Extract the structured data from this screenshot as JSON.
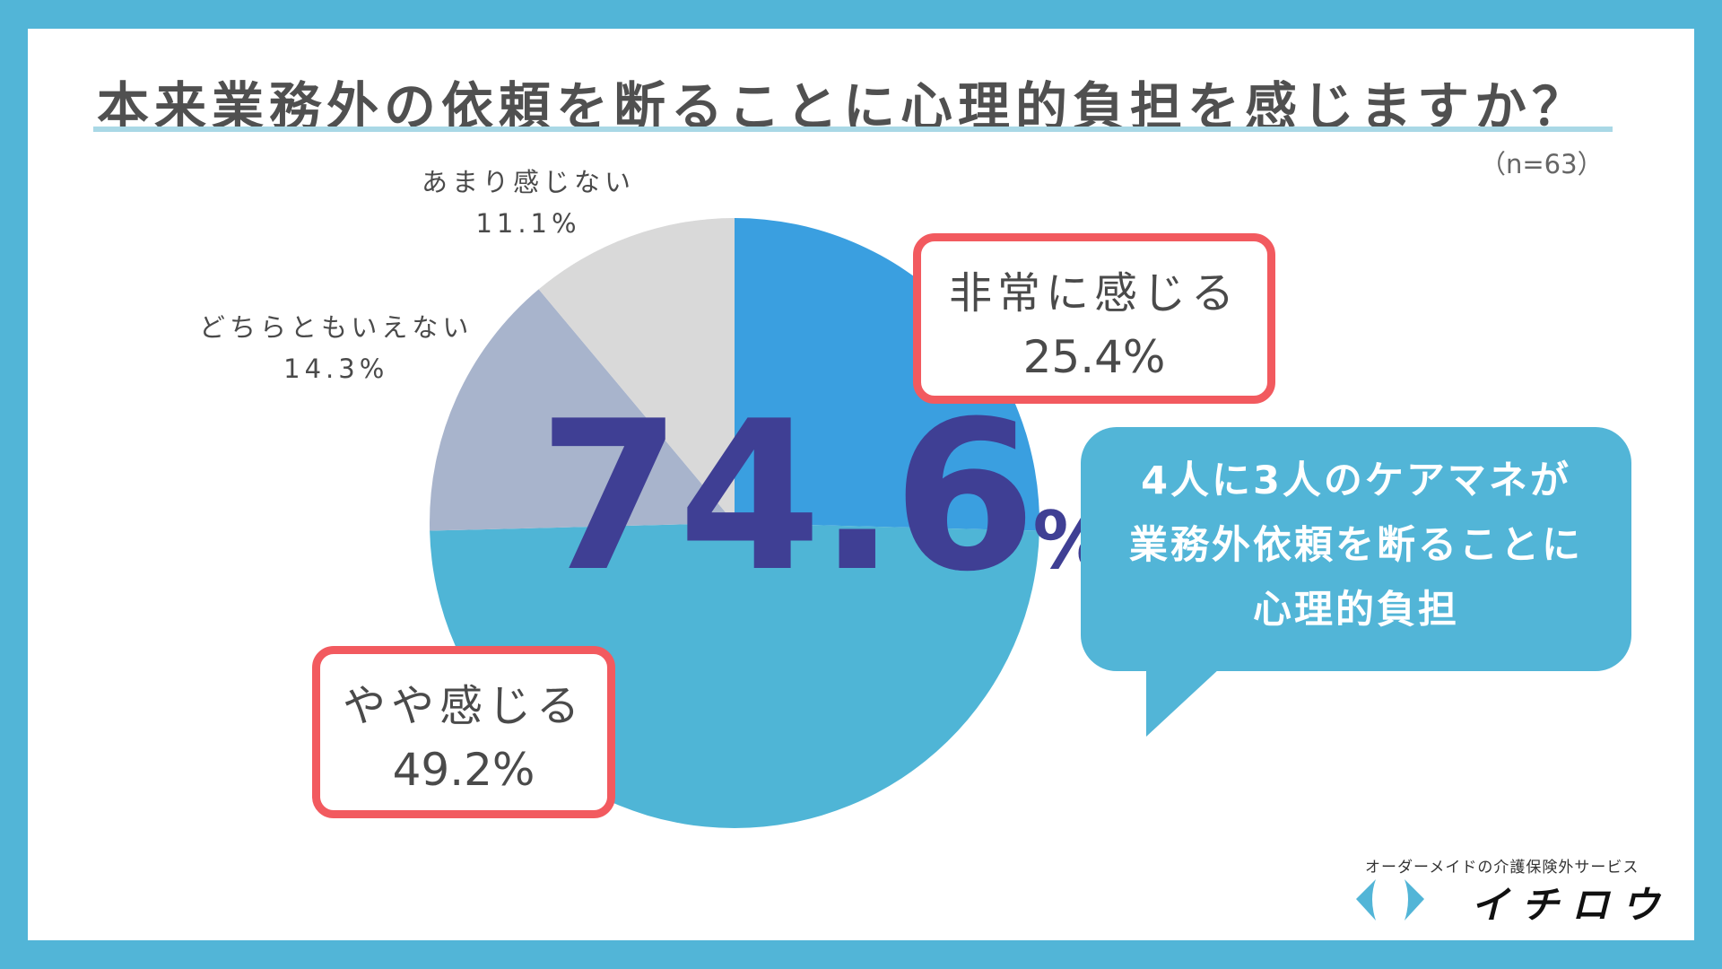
{
  "title": "本来業務外の依頼を断ることに心理的負担を感じますか？",
  "sample": "（n=63）",
  "headline": {
    "value": "74.6",
    "unit": "%"
  },
  "callout": {
    "lines": [
      "4人に3人のケアマネが",
      "業務外依頼を断ることに",
      "心理的負担"
    ]
  },
  "labels": {
    "very": {
      "name": "非常に感じる",
      "pct": "25.4%"
    },
    "somewhat": {
      "name": "やや感じる",
      "pct": "49.2%"
    },
    "neutral": {
      "name": "どちらともいえない",
      "pct": "14.3%"
    },
    "little": {
      "name": "あまり感じない",
      "pct": "11.1%"
    }
  },
  "logo": {
    "tagline": "オーダーメイドの介護保険外サービス",
    "name": "イチロウ",
    "mark_color": "#52b5d7"
  },
  "colors": {
    "frame": "#52b5d7",
    "highlight_border": "#f25a5f",
    "headline": "#3f3f94"
  },
  "chart_data": {
    "type": "pie",
    "title": "本来業務外の依頼を断ることに心理的負担を感じますか？",
    "n": 63,
    "categories": [
      "非常に感じる",
      "やや感じる",
      "どちらともいえない",
      "あまり感じない"
    ],
    "values": [
      25.4,
      49.2,
      14.3,
      11.1
    ],
    "colors": [
      "#3a9fe0",
      "#4fb5d6",
      "#a8b4cc",
      "#d9d9d9"
    ],
    "start_angle": "12 o'clock, clockwise",
    "annotation": "74.6% (非常に感じる + やや感じる)"
  }
}
